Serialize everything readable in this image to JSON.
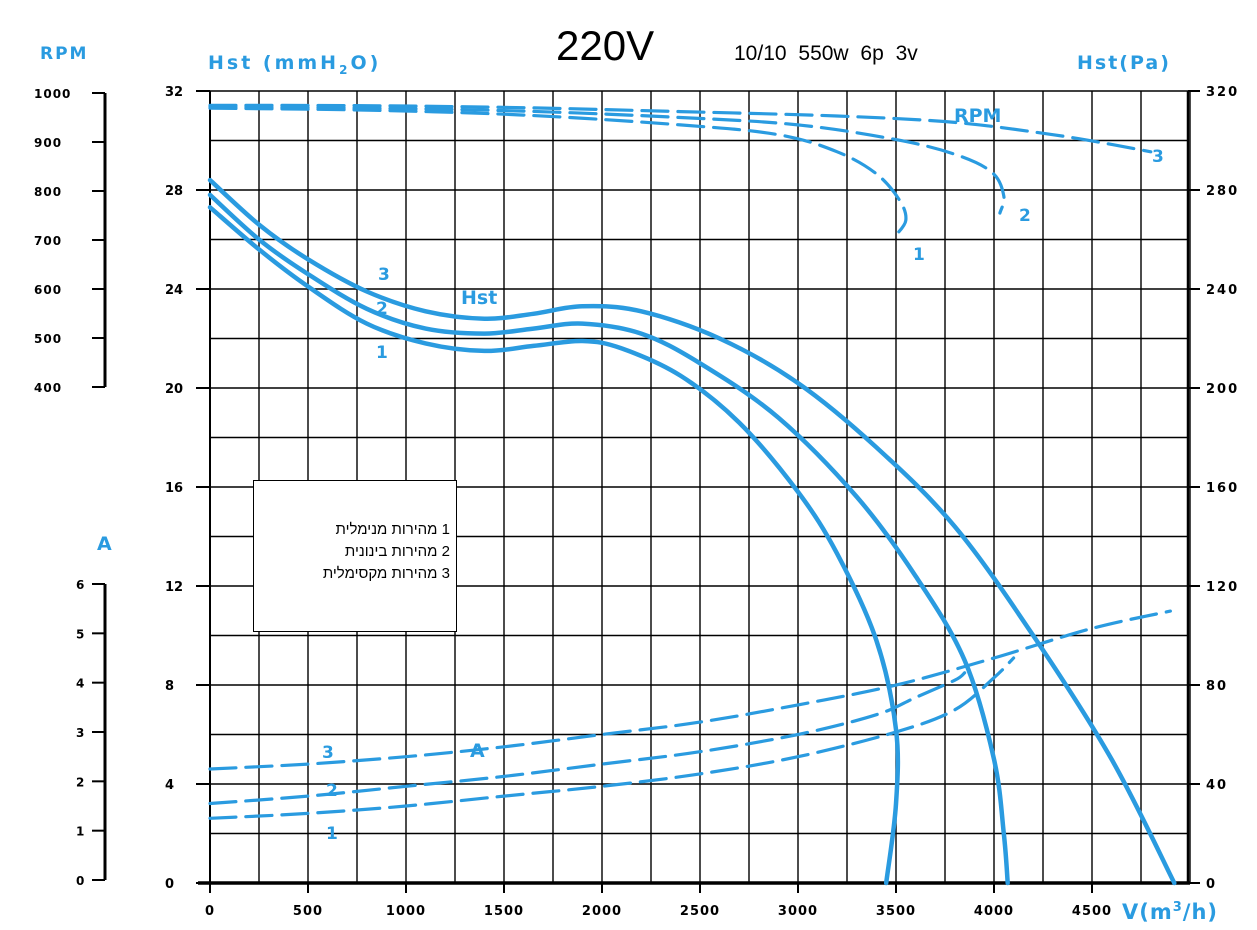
{
  "title": "220V",
  "spec": "10/10  550w  6p  3v",
  "legend": [
    {
      "num": "1",
      "text": "מהירות מנימלית"
    },
    {
      "num": "2",
      "text": "מהירות בינונית"
    },
    {
      "num": "3",
      "text": "מהירות מקסימלית"
    }
  ],
  "colors": {
    "curve": "#2a9be0",
    "axis_label": "#2a9be0",
    "grid": "#000000"
  },
  "chart_data": {
    "type": "line",
    "xlabel": "V(m³/h)",
    "x_ticks": [
      "0",
      "500",
      "1000",
      "1500",
      "2000",
      "2500",
      "3000",
      "3500",
      "4000",
      "4500"
    ],
    "xlim": [
      0,
      5000
    ],
    "axes": {
      "hst_mmh2o": {
        "label": "Hst (mmH₂O)",
        "ticks": [
          "32",
          "28",
          "24",
          "20",
          "16",
          "12",
          "8",
          "4",
          "0"
        ],
        "range": [
          0,
          32
        ]
      },
      "hst_pa": {
        "label": "Hst(Pa)",
        "ticks": [
          "320",
          "280",
          "240",
          "200",
          "160",
          "120",
          "80",
          "40",
          "0"
        ],
        "range": [
          0,
          320
        ]
      },
      "rpm": {
        "label": "RPM",
        "ticks": [
          "1000",
          "900",
          "800",
          "700",
          "600",
          "500",
          "400"
        ],
        "range": [
          400,
          1000
        ]
      },
      "amps": {
        "label": "A",
        "ticks": [
          "6",
          "5",
          "4",
          "3",
          "2",
          "1",
          "0"
        ],
        "range": [
          0,
          6
        ]
      }
    },
    "curve_labels": {
      "hst": "Hst",
      "rpm": "RPM",
      "amps": "A"
    },
    "series": [
      {
        "group": "Hst",
        "name": "1",
        "style": "solid",
        "unit": "mmH2O",
        "points": [
          [
            0,
            27.3
          ],
          [
            250,
            25.6
          ],
          [
            500,
            24.1
          ],
          [
            800,
            22.6
          ],
          [
            1100,
            21.8
          ],
          [
            1400,
            21.5
          ],
          [
            1650,
            21.7
          ],
          [
            1900,
            21.9
          ],
          [
            2100,
            21.6
          ],
          [
            2400,
            20.5
          ],
          [
            2700,
            18.6
          ],
          [
            3000,
            15.8
          ],
          [
            3200,
            13.3
          ],
          [
            3400,
            9.8
          ],
          [
            3500,
            6.2
          ],
          [
            3500,
            3.2
          ],
          [
            3450,
            0
          ]
        ]
      },
      {
        "group": "Hst",
        "name": "2",
        "style": "solid",
        "unit": "mmH2O",
        "points": [
          [
            0,
            27.8
          ],
          [
            250,
            26.0
          ],
          [
            500,
            24.6
          ],
          [
            800,
            23.2
          ],
          [
            1100,
            22.4
          ],
          [
            1400,
            22.2
          ],
          [
            1650,
            22.4
          ],
          [
            1900,
            22.6
          ],
          [
            2200,
            22.2
          ],
          [
            2500,
            21.0
          ],
          [
            2900,
            18.8
          ],
          [
            3300,
            15.6
          ],
          [
            3600,
            12.4
          ],
          [
            3850,
            9.0
          ],
          [
            4000,
            5.0
          ],
          [
            4050,
            2.0
          ],
          [
            4070,
            0
          ]
        ]
      },
      {
        "group": "Hst",
        "name": "3",
        "style": "solid",
        "unit": "mmH2O",
        "points": [
          [
            0,
            28.4
          ],
          [
            250,
            26.6
          ],
          [
            500,
            25.2
          ],
          [
            800,
            23.9
          ],
          [
            1100,
            23.1
          ],
          [
            1400,
            22.8
          ],
          [
            1650,
            23.0
          ],
          [
            1900,
            23.3
          ],
          [
            2200,
            23.1
          ],
          [
            2600,
            22.0
          ],
          [
            3000,
            20.2
          ],
          [
            3400,
            17.6
          ],
          [
            3800,
            14.4
          ],
          [
            4200,
            10.0
          ],
          [
            4600,
            5.0
          ],
          [
            4920,
            0
          ]
        ]
      },
      {
        "group": "RPM",
        "name": "1",
        "style": "dashed",
        "unit": "RPM",
        "points": [
          [
            0,
            969
          ],
          [
            800,
            965
          ],
          [
            1600,
            955
          ],
          [
            2400,
            935
          ],
          [
            2900,
            915
          ],
          [
            3200,
            880
          ],
          [
            3400,
            835
          ],
          [
            3520,
            780
          ],
          [
            3550,
            740
          ],
          [
            3500,
            710
          ]
        ]
      },
      {
        "group": "RPM",
        "name": "2",
        "style": "dashed",
        "unit": "RPM",
        "points": [
          [
            0,
            972
          ],
          [
            800,
            969
          ],
          [
            1600,
            963
          ],
          [
            2400,
            950
          ],
          [
            3000,
            935
          ],
          [
            3500,
            905
          ],
          [
            3800,
            875
          ],
          [
            3990,
            838
          ],
          [
            4050,
            790
          ],
          [
            4030,
            755
          ]
        ]
      },
      {
        "group": "RPM",
        "name": "3",
        "style": "dashed",
        "unit": "RPM",
        "points": [
          [
            0,
            975
          ],
          [
            800,
            974
          ],
          [
            1600,
            970
          ],
          [
            2400,
            962
          ],
          [
            3200,
            953
          ],
          [
            3800,
            940
          ],
          [
            4300,
            915
          ],
          [
            4600,
            895
          ],
          [
            4800,
            880
          ]
        ]
      },
      {
        "group": "A",
        "name": "1",
        "style": "dashed",
        "unit": "A",
        "points": [
          [
            0,
            1.25
          ],
          [
            500,
            1.35
          ],
          [
            1000,
            1.5
          ],
          [
            1500,
            1.7
          ],
          [
            2000,
            1.9
          ],
          [
            2500,
            2.15
          ],
          [
            3000,
            2.5
          ],
          [
            3500,
            3.0
          ],
          [
            3800,
            3.45
          ],
          [
            4000,
            4.1
          ],
          [
            4100,
            4.5
          ]
        ]
      },
      {
        "group": "A",
        "name": "2",
        "style": "dashed",
        "unit": "A",
        "points": [
          [
            0,
            1.55
          ],
          [
            500,
            1.7
          ],
          [
            1000,
            1.9
          ],
          [
            1500,
            2.1
          ],
          [
            2000,
            2.35
          ],
          [
            2500,
            2.6
          ],
          [
            3000,
            2.95
          ],
          [
            3400,
            3.35
          ],
          [
            3600,
            3.7
          ],
          [
            3800,
            4.05
          ],
          [
            3850,
            4.2
          ]
        ]
      },
      {
        "group": "A",
        "name": "3",
        "style": "dashed",
        "unit": "A",
        "points": [
          [
            0,
            2.25
          ],
          [
            500,
            2.35
          ],
          [
            1000,
            2.5
          ],
          [
            1500,
            2.7
          ],
          [
            2000,
            2.95
          ],
          [
            2500,
            3.2
          ],
          [
            3000,
            3.55
          ],
          [
            3500,
            3.95
          ],
          [
            4000,
            4.5
          ],
          [
            4500,
            5.1
          ],
          [
            4900,
            5.45
          ]
        ]
      }
    ]
  }
}
